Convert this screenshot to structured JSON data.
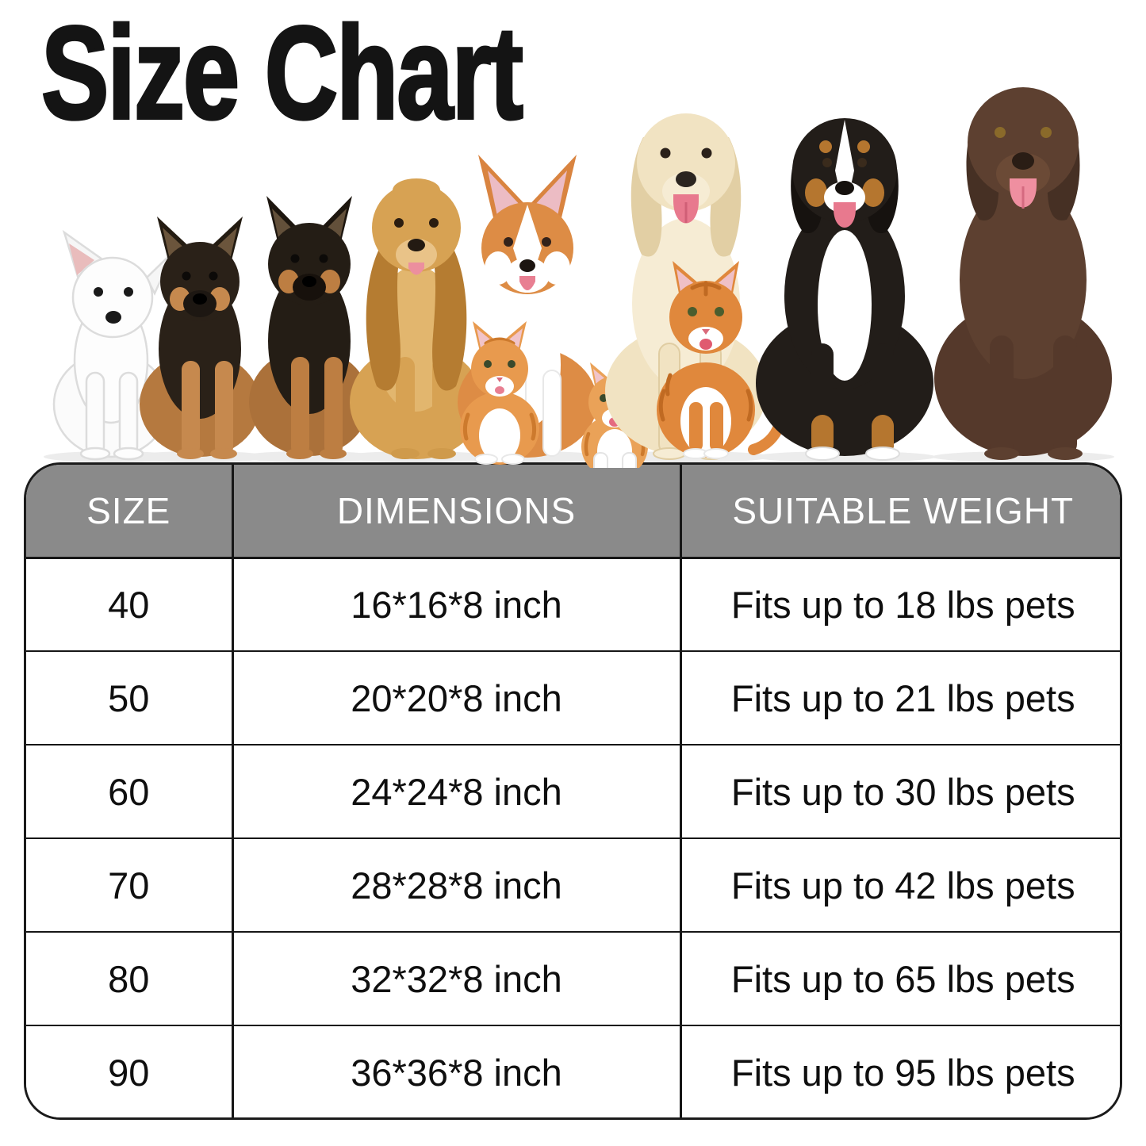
{
  "title": "Size Chart",
  "table": {
    "columns": [
      "SIZE",
      "DIMENSIONS",
      "SUITABLE WEIGHT"
    ],
    "rows": [
      {
        "size": "40",
        "dimensions": "16*16*8 inch",
        "suitable_weight": "Fits up to 18 lbs pets"
      },
      {
        "size": "50",
        "dimensions": "20*20*8 inch",
        "suitable_weight": "Fits up to 21 lbs pets"
      },
      {
        "size": "60",
        "dimensions": "24*24*8 inch",
        "suitable_weight": "Fits up to 30 lbs pets"
      },
      {
        "size": "70",
        "dimensions": "28*28*8 inch",
        "suitable_weight": "Fits up to 42 lbs pets"
      },
      {
        "size": "80",
        "dimensions": "32*32*8 inch",
        "suitable_weight": "Fits up to 65 lbs pets"
      },
      {
        "size": "90",
        "dimensions": "36*36*8 inch",
        "suitable_weight": "Fits up to 95 lbs pets"
      }
    ]
  },
  "colors": {
    "page_background": "#ffffff",
    "title_text": "#141414",
    "header_background": "#8a8a8a",
    "header_text": "#ffffff",
    "body_text": "#0f0f0f",
    "table_border": "#1b1b1b"
  },
  "illustration": {
    "pets": [
      "white-puppy",
      "german-shepherd-puppy-1",
      "german-shepherd-puppy-2",
      "cocker-spaniel",
      "corgi",
      "orange-kitten-1",
      "orange-kitten-2",
      "golden-retriever",
      "orange-tabby-cat",
      "bernese-mountain-dog",
      "chocolate-labrador"
    ]
  }
}
